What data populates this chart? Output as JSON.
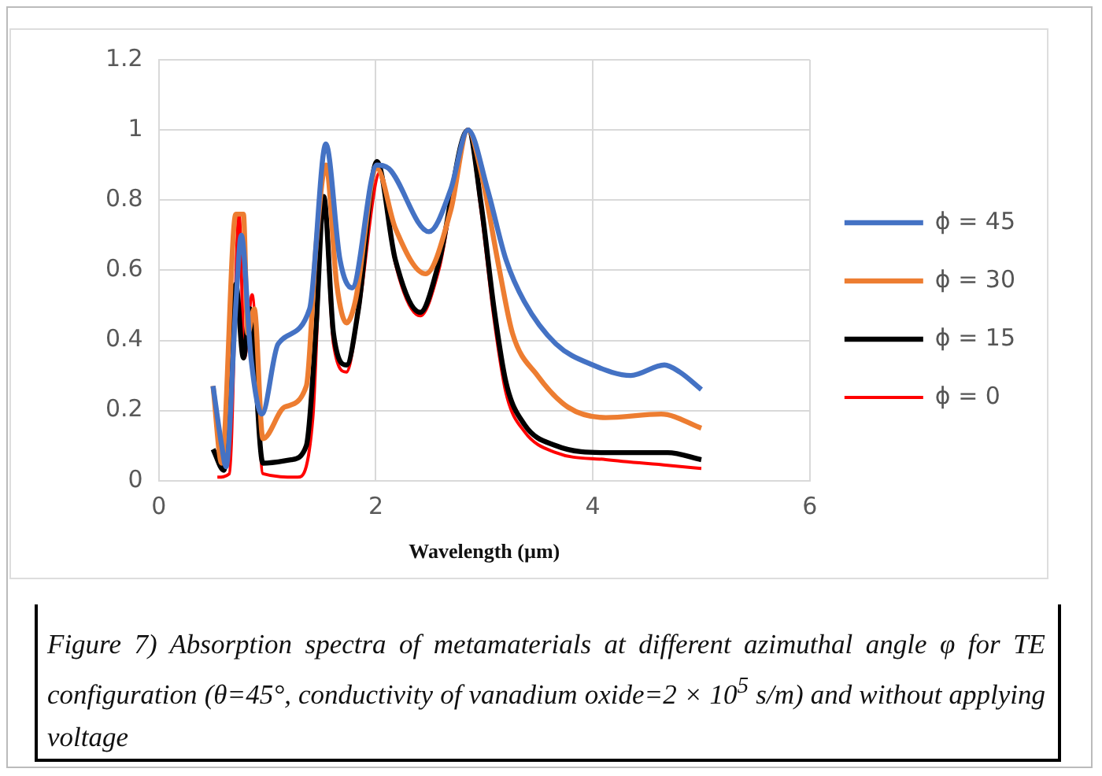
{
  "chart_data": {
    "type": "line",
    "xlabel": "Wavelength (µm)",
    "xlim": [
      0,
      6
    ],
    "xticks": [
      0,
      2,
      4,
      6
    ],
    "ylim": [
      0,
      1.2
    ],
    "yticks": [
      0,
      0.2,
      0.4,
      0.6,
      0.8,
      1,
      1.2
    ],
    "grid": true,
    "legend": "right",
    "marker": "none",
    "line_style": "solid",
    "series": [
      {
        "name": "ϕ = 45",
        "color": "#4472c4",
        "x": [
          0.5,
          0.58,
          0.62,
          0.71,
          0.76,
          0.85,
          0.95,
          1.1,
          1.39,
          1.54,
          1.67,
          1.78,
          2.01,
          2.12,
          2.49,
          2.69,
          2.85,
          3.03,
          3.2,
          3.37,
          3.66,
          4.0,
          4.35,
          4.66,
          4.8,
          5.0
        ],
        "values": [
          0.27,
          0.1,
          0.04,
          0.5,
          0.7,
          0.35,
          0.19,
          0.39,
          0.49,
          0.96,
          0.63,
          0.55,
          0.9,
          0.89,
          0.71,
          0.83,
          1.0,
          0.83,
          0.63,
          0.51,
          0.39,
          0.33,
          0.3,
          0.33,
          0.31,
          0.26
        ]
      },
      {
        "name": "ϕ = 30",
        "color": "#ed7d31",
        "x": [
          0.5,
          0.58,
          0.71,
          0.78,
          0.82,
          0.88,
          0.96,
          1.16,
          1.36,
          1.45,
          1.54,
          1.64,
          1.73,
          1.81,
          2.01,
          2.18,
          2.46,
          2.69,
          2.85,
          2.97,
          3.14,
          3.26,
          3.49,
          3.77,
          4.12,
          4.63,
          5.0
        ],
        "values": [
          0.27,
          0.05,
          0.76,
          0.76,
          0.42,
          0.49,
          0.12,
          0.21,
          0.27,
          0.67,
          0.9,
          0.56,
          0.45,
          0.51,
          0.89,
          0.72,
          0.59,
          0.77,
          1.0,
          0.88,
          0.6,
          0.42,
          0.3,
          0.21,
          0.18,
          0.19,
          0.15
        ]
      },
      {
        "name": "ϕ = 15",
        "color": "#000000",
        "x": [
          0.5,
          0.6,
          0.71,
          0.78,
          0.84,
          0.96,
          1.22,
          1.36,
          1.45,
          1.52,
          1.61,
          1.73,
          1.84,
          2.01,
          2.18,
          2.41,
          2.58,
          2.85,
          2.97,
          3.09,
          3.2,
          3.37,
          3.66,
          4.12,
          4.69,
          5.0
        ],
        "values": [
          0.09,
          0.03,
          0.56,
          0.35,
          0.49,
          0.05,
          0.06,
          0.1,
          0.44,
          0.81,
          0.42,
          0.33,
          0.49,
          0.91,
          0.63,
          0.48,
          0.62,
          1.0,
          0.79,
          0.49,
          0.28,
          0.16,
          0.1,
          0.08,
          0.08,
          0.06
        ]
      },
      {
        "name": "ϕ = 0",
        "color": "#ff0000",
        "x": [
          0.54,
          0.65,
          0.74,
          0.79,
          0.86,
          0.96,
          1.28,
          1.42,
          1.52,
          1.61,
          1.73,
          1.84,
          2.04,
          2.18,
          2.41,
          2.58,
          2.85,
          2.97,
          3.09,
          3.2,
          3.37,
          3.66,
          4.12,
          4.69,
          5.0
        ],
        "values": [
          0.01,
          0.02,
          0.76,
          0.35,
          0.53,
          0.02,
          0.01,
          0.18,
          0.79,
          0.39,
          0.31,
          0.48,
          0.88,
          0.62,
          0.47,
          0.6,
          1.0,
          0.77,
          0.46,
          0.25,
          0.14,
          0.08,
          0.06,
          0.044,
          0.035
        ]
      }
    ],
    "annotations": [
      "Figure 7) Absorption spectra of metamaterials at different azimuthal angle φ for TE configuration (θ=45°, conductivity of vanadium oxide=2 × 10$^{5}$ s/m) and without applying voltage"
    ]
  }
}
